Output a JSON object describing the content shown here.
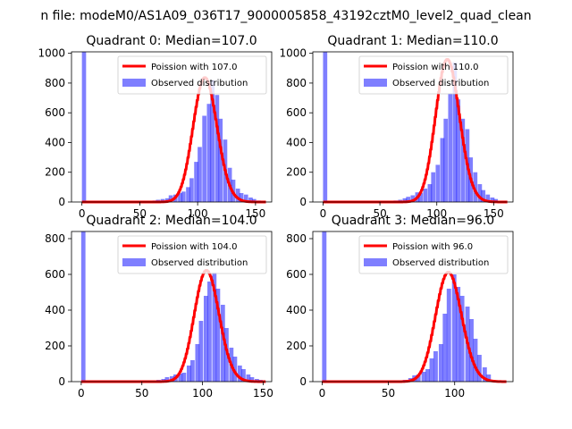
{
  "suptitle": "n file: modeM0/AS1A09_036T17_9000005858_43192cztM0_level2_quad_clean",
  "colors": {
    "poisson": "#ff0000",
    "observed": "#0000ff",
    "observed_alpha": 0.5
  },
  "chart_data": [
    {
      "type": "bar",
      "title": "Quadrant 0: Median=107.0",
      "median": 107.0,
      "legend": [
        "Poission with 107.0",
        "Observed distribution"
      ],
      "legend_loc": "upper right",
      "xlim": [
        -9,
        164
      ],
      "ylim": [
        0,
        1010
      ],
      "xticks": [
        0,
        50,
        100,
        150
      ],
      "yticks": [
        0,
        200,
        400,
        600,
        800,
        1000
      ],
      "bin_width": 3.6,
      "hist": [
        [
          0,
          1010
        ],
        [
          57,
          5
        ],
        [
          61,
          10
        ],
        [
          64,
          15
        ],
        [
          68,
          20
        ],
        [
          72,
          25
        ],
        [
          75,
          45
        ],
        [
          79,
          50
        ],
        [
          83,
          60
        ],
        [
          86,
          70
        ],
        [
          90,
          100
        ],
        [
          93,
          160
        ],
        [
          97,
          270
        ],
        [
          100,
          370
        ],
        [
          104,
          580
        ],
        [
          108,
          660
        ],
        [
          111,
          820
        ],
        [
          115,
          720
        ],
        [
          118,
          560
        ],
        [
          122,
          420
        ],
        [
          126,
          230
        ],
        [
          129,
          150
        ],
        [
          133,
          90
        ],
        [
          136,
          60
        ],
        [
          140,
          50
        ],
        [
          144,
          30
        ],
        [
          147,
          20
        ],
        [
          151,
          10
        ]
      ]
    },
    {
      "type": "bar",
      "title": "Quadrant 1: Median=110.0",
      "median": 110.0,
      "legend": [
        "Poission with 110.0",
        "Observed distribution"
      ],
      "legend_loc": "upper right",
      "xlim": [
        -9,
        167
      ],
      "ylim": [
        0,
        1010
      ],
      "xticks": [
        0,
        50,
        100,
        150
      ],
      "yticks": [
        0,
        200,
        400,
        600,
        800,
        1000
      ],
      "bin_width": 3.7,
      "hist": [
        [
          0,
          1010
        ],
        [
          62,
          10
        ],
        [
          66,
          15
        ],
        [
          70,
          25
        ],
        [
          73,
          35
        ],
        [
          77,
          45
        ],
        [
          81,
          65
        ],
        [
          84,
          60
        ],
        [
          88,
          90
        ],
        [
          92,
          120
        ],
        [
          95,
          200
        ],
        [
          99,
          250
        ],
        [
          103,
          430
        ],
        [
          106,
          560
        ],
        [
          110,
          730
        ],
        [
          114,
          940
        ],
        [
          117,
          690
        ],
        [
          121,
          560
        ],
        [
          125,
          490
        ],
        [
          128,
          300
        ],
        [
          132,
          200
        ],
        [
          136,
          120
        ],
        [
          139,
          80
        ],
        [
          143,
          50
        ],
        [
          147,
          30
        ],
        [
          150,
          20
        ]
      ]
    },
    {
      "type": "bar",
      "title": "Quadrant 2: Median=104.0",
      "median": 104.0,
      "legend": [
        "Poission with 104.0",
        "Observed distribution"
      ],
      "legend_loc": "upper right",
      "xlim": [
        -8,
        157
      ],
      "ylim": [
        0,
        840
      ],
      "xticks": [
        0,
        50,
        100,
        150
      ],
      "yticks": [
        0,
        200,
        400,
        600,
        800
      ],
      "bin_width": 3.5,
      "hist": [
        [
          0,
          840
        ],
        [
          59,
          5
        ],
        [
          62,
          10
        ],
        [
          66,
          15
        ],
        [
          69,
          25
        ],
        [
          73,
          30
        ],
        [
          76,
          40
        ],
        [
          80,
          45
        ],
        [
          83,
          50
        ],
        [
          87,
          90
        ],
        [
          90,
          120
        ],
        [
          94,
          210
        ],
        [
          97,
          340
        ],
        [
          101,
          480
        ],
        [
          104,
          560
        ],
        [
          108,
          610
        ],
        [
          111,
          520
        ],
        [
          115,
          430
        ],
        [
          118,
          300
        ],
        [
          122,
          190
        ],
        [
          125,
          140
        ],
        [
          129,
          90
        ],
        [
          132,
          70
        ],
        [
          136,
          40
        ],
        [
          139,
          25
        ],
        [
          143,
          15
        ],
        [
          146,
          10
        ]
      ]
    },
    {
      "type": "bar",
      "title": "Quadrant 3: Median=96.0",
      "median": 96.0,
      "legend": [
        "Poission with 96.0",
        "Observed distribution"
      ],
      "legend_loc": "upper right",
      "xlim": [
        -7,
        144
      ],
      "ylim": [
        0,
        840
      ],
      "xticks": [
        0,
        50,
        100
      ],
      "yticks": [
        0,
        200,
        400,
        600,
        800
      ],
      "bin_width": 3.3,
      "hist": [
        [
          0,
          840
        ],
        [
          55,
          5
        ],
        [
          58,
          5
        ],
        [
          61,
          10
        ],
        [
          65,
          20
        ],
        [
          68,
          35
        ],
        [
          71,
          40
        ],
        [
          75,
          55
        ],
        [
          78,
          70
        ],
        [
          81,
          130
        ],
        [
          84,
          170
        ],
        [
          88,
          210
        ],
        [
          91,
          380
        ],
        [
          94,
          520
        ],
        [
          98,
          600
        ],
        [
          101,
          530
        ],
        [
          104,
          480
        ],
        [
          108,
          420
        ],
        [
          111,
          350
        ],
        [
          114,
          240
        ],
        [
          117,
          150
        ],
        [
          121,
          80
        ],
        [
          124,
          40
        ],
        [
          127,
          10
        ]
      ]
    }
  ]
}
